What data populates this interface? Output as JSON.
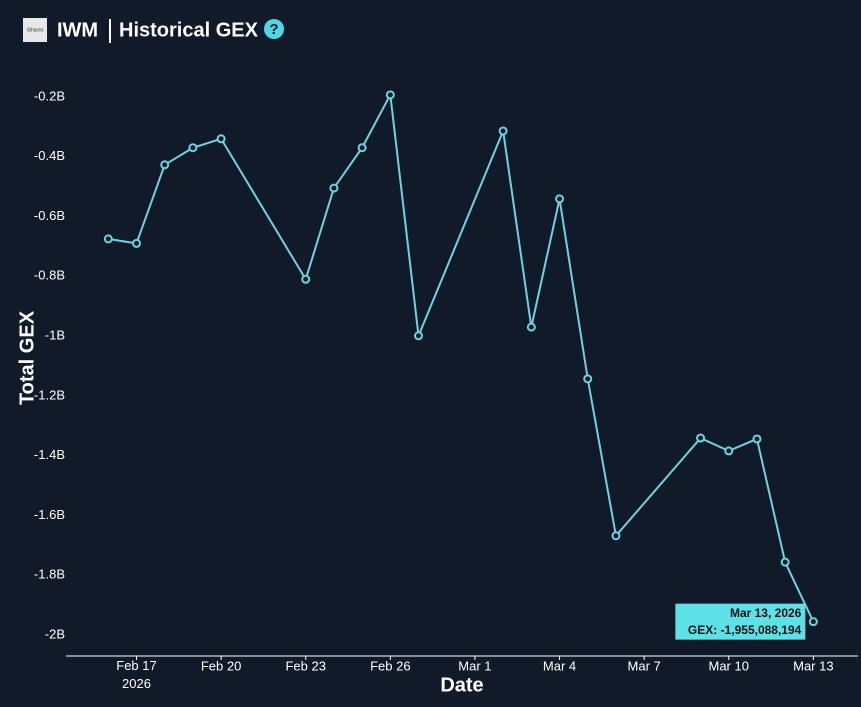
{
  "header": {
    "logo_text": "iShares",
    "ticker": "IWM",
    "title": "Historical GEX"
  },
  "chart_data": {
    "type": "line",
    "x_label": "Date",
    "y_label": "Total GEX",
    "x": [
      "2026-02-16",
      "2026-02-17",
      "2026-02-18",
      "2026-02-19",
      "2026-02-20",
      "2026-02-23",
      "2026-02-24",
      "2026-02-25",
      "2026-02-26",
      "2026-02-27",
      "2026-03-02",
      "2026-03-03",
      "2026-03-04",
      "2026-03-05",
      "2026-03-06",
      "2026-03-09",
      "2026-03-10",
      "2026-03-11",
      "2026-03-12",
      "2026-03-13"
    ],
    "series": [
      {
        "name": "GEX",
        "color": "#6fd3df",
        "values": [
          -675000000,
          -690000000,
          -427000000,
          -370000000,
          -340000000,
          -810000000,
          -505000000,
          -370000000,
          -193000000,
          -999000000,
          -314000000,
          -970000000,
          -541000000,
          -1143000000,
          -1668000000,
          -1341000000,
          -1384000000,
          -1344000000,
          -1756000000,
          -1955088194
        ]
      }
    ],
    "xlim": [
      "2026-02-14T12:00Z",
      "2026-03-14T14:00Z"
    ],
    "xticks": [
      {
        "value": "2026-02-17",
        "label": "Feb 17\n2026"
      },
      {
        "value": "2026-02-20",
        "label": "Feb 20"
      },
      {
        "value": "2026-02-23",
        "label": "Feb 23"
      },
      {
        "value": "2026-02-26",
        "label": "Feb 26"
      },
      {
        "value": "2026-03-01",
        "label": "Mar 1"
      },
      {
        "value": "2026-03-04",
        "label": "Mar 4"
      },
      {
        "value": "2026-03-07",
        "label": "Mar 7"
      },
      {
        "value": "2026-03-10",
        "label": "Mar 10"
      },
      {
        "value": "2026-03-13",
        "label": "Mar 13"
      }
    ],
    "ylim": [
      -2070000000,
      -110000000
    ],
    "yticks": [
      {
        "value": -200000000,
        "label": "-0.2B"
      },
      {
        "value": -400000000,
        "label": "-0.4B"
      },
      {
        "value": -600000000,
        "label": "-0.6B"
      },
      {
        "value": -800000000,
        "label": "-0.8B"
      },
      {
        "value": -1000000000,
        "label": "-1B"
      },
      {
        "value": -1200000000,
        "label": "-1.2B"
      },
      {
        "value": -1400000000,
        "label": "-1.4B"
      },
      {
        "value": -1600000000,
        "label": "-1.6B"
      },
      {
        "value": -1800000000,
        "label": "-1.8B"
      },
      {
        "value": -2000000000,
        "label": "-2B"
      }
    ],
    "grid": false,
    "tooltip": {
      "title": "Mar 13, 2026",
      "label": "GEX: -1,955,088,194"
    }
  }
}
